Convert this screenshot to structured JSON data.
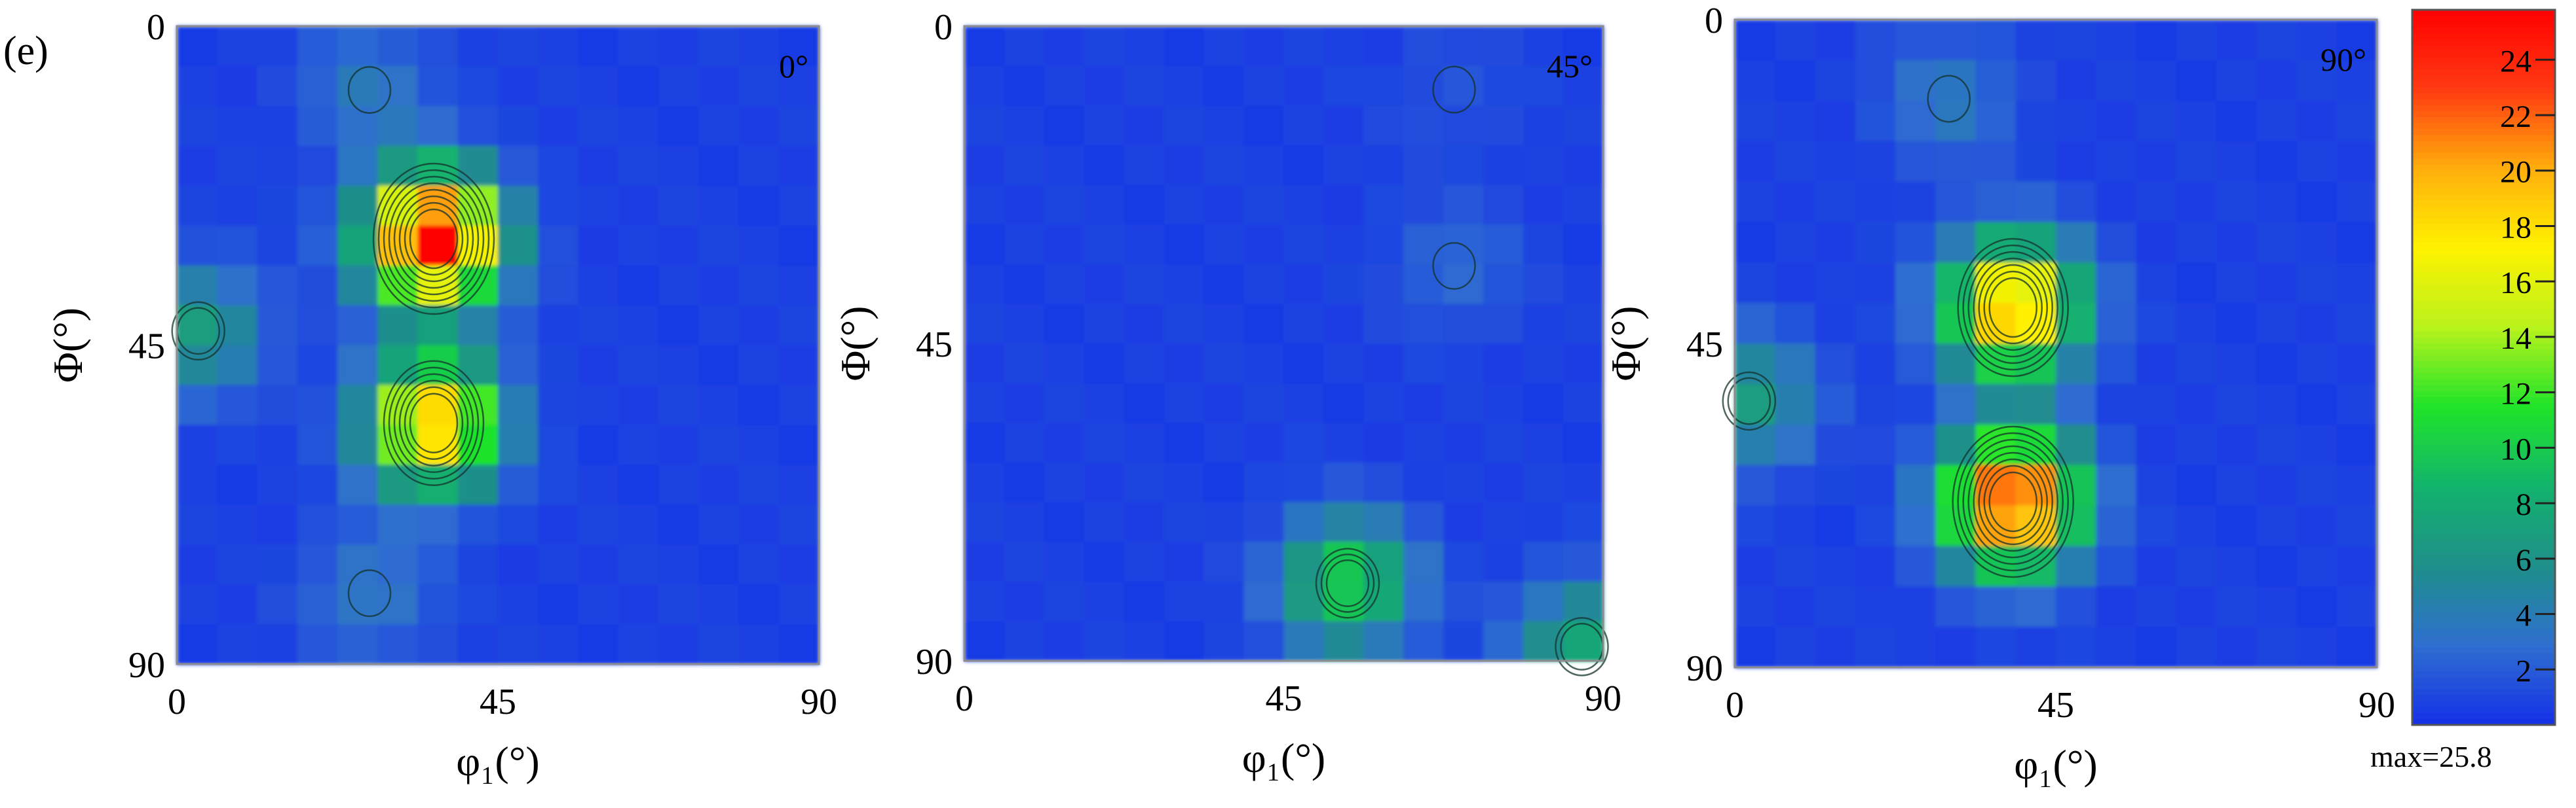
{
  "figure": {
    "panel_label": "(e)"
  },
  "colors": {
    "background": "#ffffff",
    "contour": "#14332c",
    "colormap": [
      "#1530e8",
      "#2f6fd0",
      "#1f8f8a",
      "#13b36d",
      "#1fe42a",
      "#b8f21c",
      "#fff200",
      "#ffae0c",
      "#ff3a12",
      "#ff0000"
    ]
  },
  "chart_data": [
    {
      "type": "heatmap",
      "title": "0°",
      "xlabel": "φ₁(°)",
      "ylabel": "Φ(°)",
      "x_ticks": [
        "0",
        "45",
        "90"
      ],
      "y_ticks": [
        "0",
        "45",
        "90"
      ],
      "xlim": [
        0,
        90
      ],
      "ylim": [
        90,
        0
      ],
      "grid": "16x16 cells of 5.625°",
      "peaks": [
        {
          "phi1": 36,
          "Phi": 30,
          "value": 25.8
        },
        {
          "phi1": 36,
          "Phi": 56,
          "value": 19
        },
        {
          "phi1": 3,
          "Phi": 43,
          "value": 6
        },
        {
          "phi1": 27,
          "Phi": 9,
          "value": 3
        },
        {
          "phi1": 27,
          "Phi": 80,
          "value": 3
        }
      ]
    },
    {
      "type": "heatmap",
      "title": "45°",
      "xlabel": "φ₁(°)",
      "ylabel": "Φ(°)",
      "x_ticks": [
        "0",
        "45",
        "90"
      ],
      "y_ticks": [
        "0",
        "45",
        "90"
      ],
      "xlim": [
        0,
        90
      ],
      "ylim": [
        90,
        0
      ],
      "grid": "16x16 cells of 5.625°",
      "peaks": [
        {
          "phi1": 54,
          "Phi": 79,
          "value": 10
        },
        {
          "phi1": 87,
          "Phi": 88,
          "value": 7
        },
        {
          "phi1": 69,
          "Phi": 34,
          "value": 2
        },
        {
          "phi1": 69,
          "Phi": 9,
          "value": 1
        }
      ]
    },
    {
      "type": "heatmap",
      "title": "90°",
      "xlabel": "φ₁(°)",
      "ylabel": "Φ(°)",
      "x_ticks": [
        "0",
        "45",
        "90"
      ],
      "y_ticks": [
        "0",
        "45",
        "90"
      ],
      "xlim": [
        0,
        90
      ],
      "ylim": [
        90,
        0
      ],
      "grid": "16x16 cells of 5.625°",
      "peaks": [
        {
          "phi1": 39,
          "Phi": 40,
          "value": 20
        },
        {
          "phi1": 39,
          "Phi": 67,
          "value": 24
        },
        {
          "phi1": 2,
          "Phi": 53,
          "value": 6
        },
        {
          "phi1": 30,
          "Phi": 11,
          "value": 3
        }
      ]
    }
  ],
  "colorbar": {
    "tick_labels": [
      "2",
      "4",
      "6",
      "8",
      "10",
      "12",
      "14",
      "16",
      "18",
      "20",
      "22",
      "24"
    ],
    "range": [
      0,
      25.8
    ],
    "max_label": "max=25.8"
  }
}
